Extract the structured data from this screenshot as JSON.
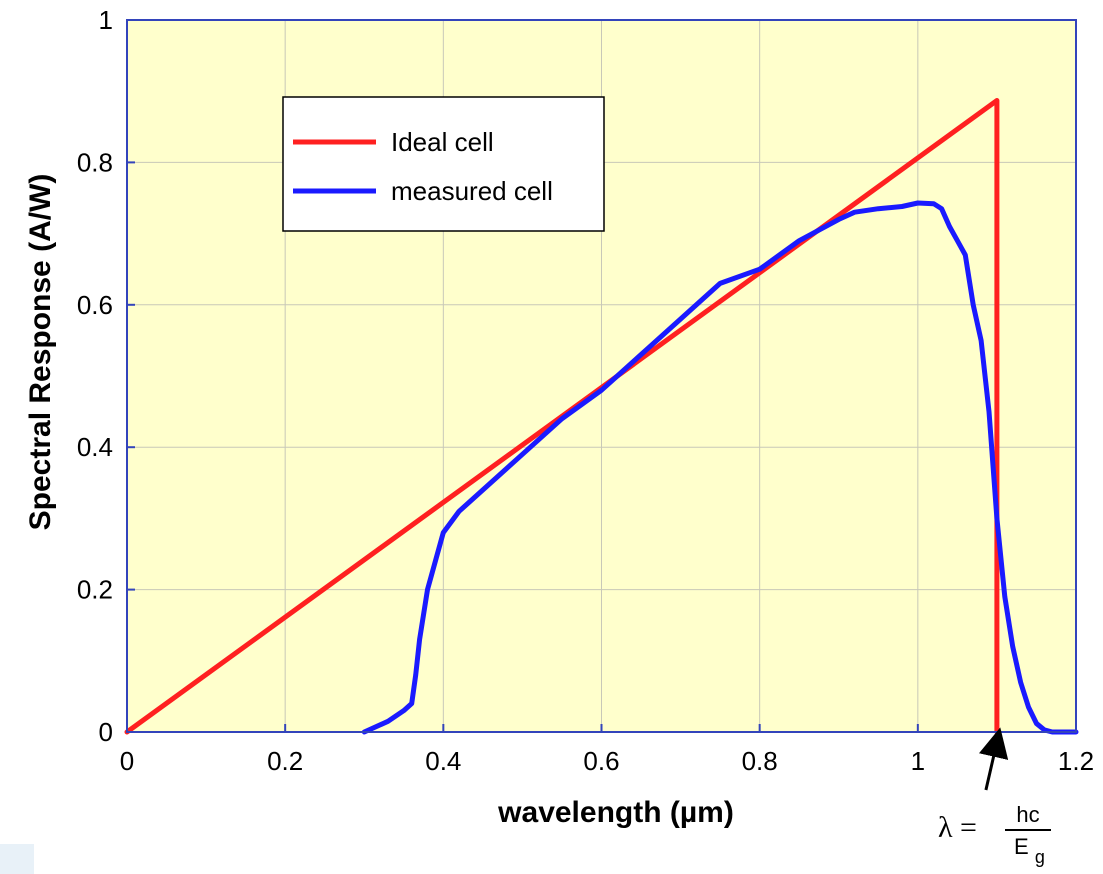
{
  "chart_data": {
    "type": "line",
    "title": "",
    "xlabel": "wavelength (µm)",
    "ylabel": "Spectral Response (A/W)",
    "xlim": [
      0,
      1.2
    ],
    "ylim": [
      0,
      1
    ],
    "xticks": [
      0,
      0.2,
      0.4,
      0.6,
      0.8,
      1,
      1.2
    ],
    "xtick_labels": [
      "0",
      "0.2",
      "0.4",
      "0.6",
      "0.8",
      "1",
      "1.2"
    ],
    "yticks": [
      0,
      0.2,
      0.4,
      0.6,
      0.8,
      1
    ],
    "ytick_labels": [
      "0",
      "0.2",
      "0.4",
      "0.6",
      "0.8",
      "1"
    ],
    "grid": true,
    "legend_position": "top-left",
    "colors": {
      "plot_background": "#ffffcc",
      "axis_frame": "#3344bb",
      "grid": "#c8c8b8"
    },
    "series": [
      {
        "name": "Ideal cell",
        "color": "#ff2020",
        "x": [
          0,
          1.1,
          1.1
        ],
        "y": [
          0,
          0.887,
          0
        ]
      },
      {
        "name": "measured cell",
        "color": "#1a1aff",
        "x": [
          0.3,
          0.33,
          0.35,
          0.36,
          0.365,
          0.37,
          0.38,
          0.39,
          0.4,
          0.42,
          0.45,
          0.5,
          0.55,
          0.6,
          0.65,
          0.7,
          0.75,
          0.8,
          0.85,
          0.9,
          0.92,
          0.95,
          0.98,
          1.0,
          1.02,
          1.03,
          1.04,
          1.05,
          1.06,
          1.07,
          1.08,
          1.09,
          1.1,
          1.11,
          1.12,
          1.13,
          1.14,
          1.15,
          1.16,
          1.17,
          1.18,
          1.2
        ],
        "y": [
          0,
          0.015,
          0.03,
          0.04,
          0.08,
          0.13,
          0.2,
          0.24,
          0.28,
          0.31,
          0.34,
          0.39,
          0.44,
          0.48,
          0.53,
          0.58,
          0.63,
          0.65,
          0.69,
          0.72,
          0.73,
          0.735,
          0.738,
          0.743,
          0.742,
          0.735,
          0.71,
          0.69,
          0.67,
          0.6,
          0.55,
          0.45,
          0.3,
          0.19,
          0.12,
          0.07,
          0.035,
          0.012,
          0.003,
          0,
          0,
          0
        ]
      }
    ],
    "annotations": [
      {
        "type": "arrow",
        "x": 1.1,
        "lambda": "λ =",
        "numerator": "hc",
        "denominator_base": "E",
        "denominator_sub": "g"
      }
    ]
  }
}
